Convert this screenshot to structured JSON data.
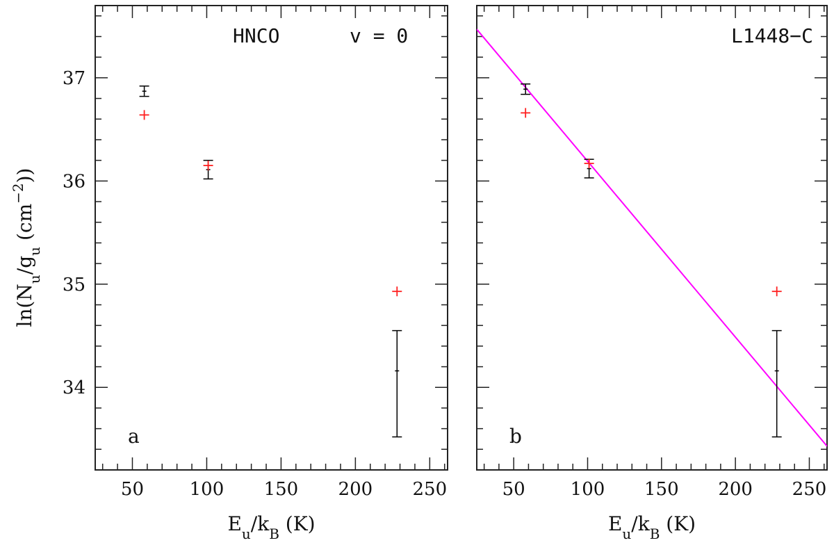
{
  "chart_data": [
    {
      "type": "scatter",
      "panel_label": "a",
      "annotations": [
        "HNCO",
        "v = 0"
      ],
      "xlabel": "E_u/k_B (K)",
      "ylabel": "ln(N_u/g_u (cm^-2))",
      "xlim": [
        25,
        262
      ],
      "ylim": [
        33.2,
        37.7
      ],
      "xticks": [
        50,
        100,
        150,
        200,
        250
      ],
      "yticks": [
        34,
        35,
        36,
        37
      ],
      "series": [
        {
          "kind": "observed-with-errorbars",
          "color": "#000000",
          "points": [
            {
              "x": 58,
              "y": 36.87,
              "err_low": 36.82,
              "err_high": 36.92
            },
            {
              "x": 101,
              "y": 36.11,
              "err_low": 36.02,
              "err_high": 36.2
            },
            {
              "x": 228,
              "y": 34.16,
              "err_low": 33.52,
              "err_high": 34.55
            }
          ]
        },
        {
          "kind": "model",
          "color": "#ff2020",
          "points": [
            {
              "x": 58,
              "y": 36.64
            },
            {
              "x": 101,
              "y": 36.15
            },
            {
              "x": 228,
              "y": 34.93
            }
          ]
        }
      ]
    },
    {
      "type": "scatter",
      "panel_label": "b",
      "annotations": [
        "L1448−C"
      ],
      "xlabel": "E_u/k_B (K)",
      "ylabel": "",
      "xlim": [
        25,
        262
      ],
      "ylim": [
        33.2,
        37.7
      ],
      "xticks": [
        50,
        100,
        150,
        200,
        250
      ],
      "yticks": [
        34,
        35,
        36,
        37
      ],
      "series": [
        {
          "kind": "observed-with-errorbars",
          "color": "#000000",
          "points": [
            {
              "x": 58,
              "y": 36.89,
              "err_low": 36.84,
              "err_high": 36.94
            },
            {
              "x": 101,
              "y": 36.12,
              "err_low": 36.03,
              "err_high": 36.21
            },
            {
              "x": 228,
              "y": 34.16,
              "err_low": 33.52,
              "err_high": 34.55
            }
          ]
        },
        {
          "kind": "model",
          "color": "#ff2020",
          "points": [
            {
              "x": 58,
              "y": 36.66
            },
            {
              "x": 101,
              "y": 36.17
            },
            {
              "x": 228,
              "y": 34.93
            }
          ]
        }
      ],
      "fit_line": {
        "color": "#ff00ff",
        "x": [
          25,
          262
        ],
        "y": [
          37.47,
          33.43
        ]
      }
    }
  ]
}
